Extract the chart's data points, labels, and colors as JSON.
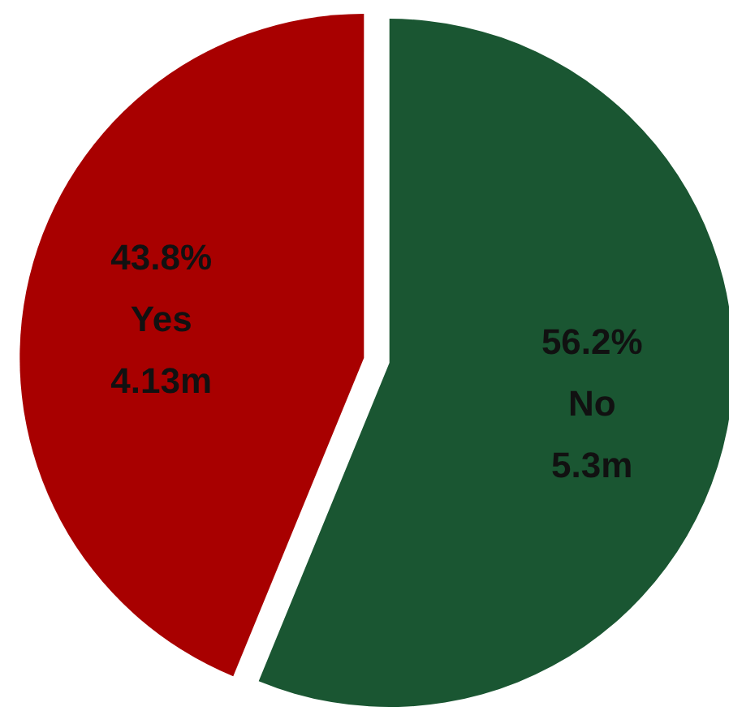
{
  "chart_data": {
    "type": "pie",
    "categories": [
      "No",
      "Yes"
    ],
    "values": [
      56.2,
      43.8
    ],
    "colors": [
      "#1a5632",
      "#a80000"
    ],
    "value_labels": [
      "56.2%",
      "43.8%"
    ],
    "annotations": [
      {
        "text": "5.3m",
        "x": "No"
      },
      {
        "text": "4.13m",
        "x": "Yes"
      }
    ],
    "legend": false
  }
}
